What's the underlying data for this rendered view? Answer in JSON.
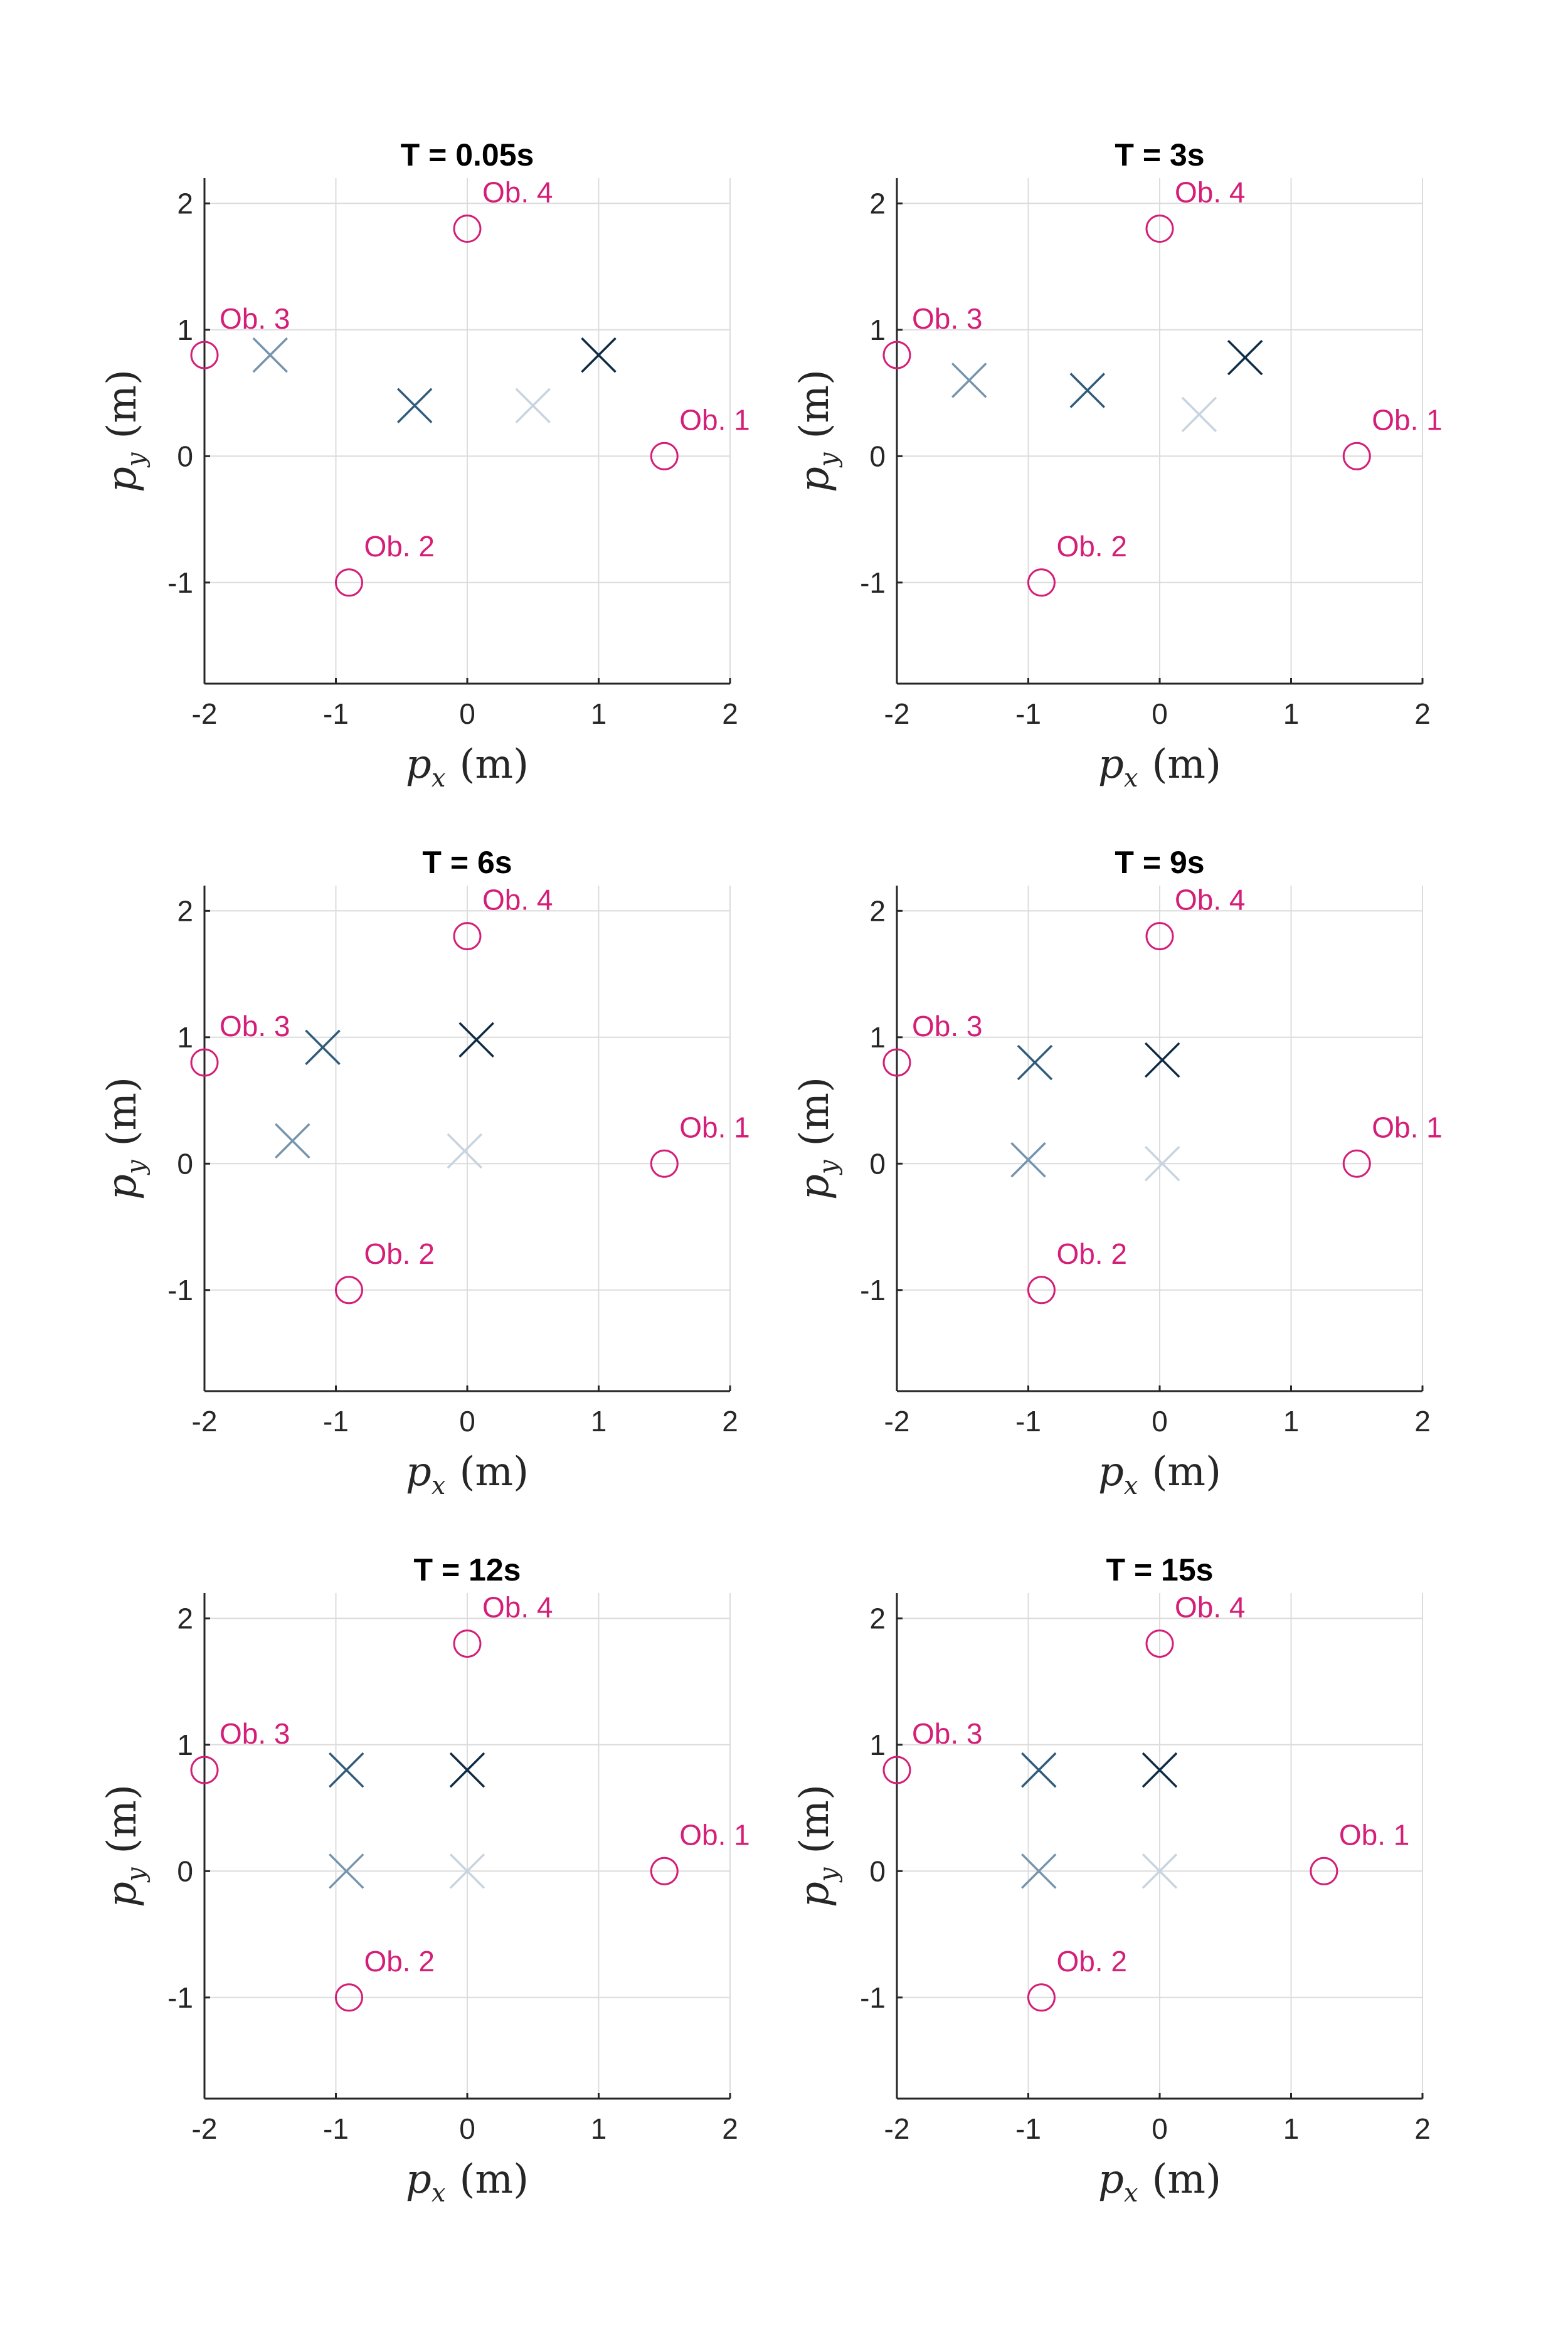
{
  "colors": {
    "obstacle": "#d41e77",
    "agents": [
      "#0d2b45",
      "#2f5b7c",
      "#7594ad",
      "#c7d4df"
    ],
    "grid": "#dcdcdc",
    "axis": "#262626"
  },
  "chart_data": [
    {
      "type": "scatter",
      "title": "T = 0.05s",
      "xlabel": {
        "var": "p",
        "sub": "x",
        "unit": "(m)"
      },
      "ylabel": {
        "var": "p",
        "sub": "y",
        "unit": "(m)"
      },
      "xlim": [
        -2,
        2
      ],
      "ylim": [
        -1.8,
        2.2
      ],
      "xticks": [
        "-2",
        "-1",
        "0",
        "1",
        "2"
      ],
      "yticks": [
        "-1",
        "0",
        "1",
        "2"
      ],
      "grid": true,
      "obstacles": [
        {
          "label": "Ob. 1",
          "x": 1.5,
          "y": 0
        },
        {
          "label": "Ob. 2",
          "x": -0.9,
          "y": -1
        },
        {
          "label": "Ob. 3",
          "x": -2,
          "y": 0.8
        },
        {
          "label": "Ob. 4",
          "x": 0,
          "y": 1.8
        }
      ],
      "agents": [
        {
          "x": 1.0,
          "y": 0.8
        },
        {
          "x": -0.4,
          "y": 0.4
        },
        {
          "x": -1.5,
          "y": 0.8
        },
        {
          "x": 0.5,
          "y": 0.4
        }
      ]
    },
    {
      "type": "scatter",
      "title": "T = 3s",
      "xlabel": {
        "var": "p",
        "sub": "x",
        "unit": "(m)"
      },
      "ylabel": {
        "var": "p",
        "sub": "y",
        "unit": "(m)"
      },
      "xlim": [
        -2,
        2
      ],
      "ylim": [
        -1.8,
        2.2
      ],
      "xticks": [
        "-2",
        "-1",
        "0",
        "1",
        "2"
      ],
      "yticks": [
        "-1",
        "0",
        "1",
        "2"
      ],
      "grid": true,
      "obstacles": [
        {
          "label": "Ob. 1",
          "x": 1.5,
          "y": 0
        },
        {
          "label": "Ob. 2",
          "x": -0.9,
          "y": -1
        },
        {
          "label": "Ob. 3",
          "x": -2,
          "y": 0.8
        },
        {
          "label": "Ob. 4",
          "x": 0,
          "y": 1.8
        }
      ],
      "agents": [
        {
          "x": 0.65,
          "y": 0.78
        },
        {
          "x": -0.55,
          "y": 0.52
        },
        {
          "x": -1.45,
          "y": 0.6
        },
        {
          "x": 0.3,
          "y": 0.33
        }
      ]
    },
    {
      "type": "scatter",
      "title": "T = 6s",
      "xlabel": {
        "var": "p",
        "sub": "x",
        "unit": "(m)"
      },
      "ylabel": {
        "var": "p",
        "sub": "y",
        "unit": "(m)"
      },
      "xlim": [
        -2,
        2
      ],
      "ylim": [
        -1.8,
        2.2
      ],
      "xticks": [
        "-2",
        "-1",
        "0",
        "1",
        "2"
      ],
      "yticks": [
        "-1",
        "0",
        "1",
        "2"
      ],
      "grid": true,
      "obstacles": [
        {
          "label": "Ob. 1",
          "x": 1.5,
          "y": 0
        },
        {
          "label": "Ob. 2",
          "x": -0.9,
          "y": -1
        },
        {
          "label": "Ob. 3",
          "x": -2,
          "y": 0.8
        },
        {
          "label": "Ob. 4",
          "x": 0,
          "y": 1.8
        }
      ],
      "agents": [
        {
          "x": 0.07,
          "y": 0.98
        },
        {
          "x": -1.1,
          "y": 0.92
        },
        {
          "x": -1.33,
          "y": 0.18
        },
        {
          "x": -0.02,
          "y": 0.1
        }
      ]
    },
    {
      "type": "scatter",
      "title": "T = 9s",
      "xlabel": {
        "var": "p",
        "sub": "x",
        "unit": "(m)"
      },
      "ylabel": {
        "var": "p",
        "sub": "y",
        "unit": "(m)"
      },
      "xlim": [
        -2,
        2
      ],
      "ylim": [
        -1.8,
        2.2
      ],
      "xticks": [
        "-2",
        "-1",
        "0",
        "1",
        "2"
      ],
      "yticks": [
        "-1",
        "0",
        "1",
        "2"
      ],
      "grid": true,
      "obstacles": [
        {
          "label": "Ob. 1",
          "x": 1.5,
          "y": 0
        },
        {
          "label": "Ob. 2",
          "x": -0.9,
          "y": -1
        },
        {
          "label": "Ob. 3",
          "x": -2,
          "y": 0.8
        },
        {
          "label": "Ob. 4",
          "x": 0,
          "y": 1.8
        }
      ],
      "agents": [
        {
          "x": 0.02,
          "y": 0.82
        },
        {
          "x": -0.95,
          "y": 0.8
        },
        {
          "x": -1.0,
          "y": 0.03
        },
        {
          "x": 0.02,
          "y": 0.0
        }
      ]
    },
    {
      "type": "scatter",
      "title": "T = 12s",
      "xlabel": {
        "var": "p",
        "sub": "x",
        "unit": "(m)"
      },
      "ylabel": {
        "var": "p",
        "sub": "y",
        "unit": "(m)"
      },
      "xlim": [
        -2,
        2
      ],
      "ylim": [
        -1.8,
        2.2
      ],
      "xticks": [
        "-2",
        "-1",
        "0",
        "1",
        "2"
      ],
      "yticks": [
        "-1",
        "0",
        "1",
        "2"
      ],
      "grid": true,
      "obstacles": [
        {
          "label": "Ob. 1",
          "x": 1.5,
          "y": 0
        },
        {
          "label": "Ob. 2",
          "x": -0.9,
          "y": -1
        },
        {
          "label": "Ob. 3",
          "x": -2,
          "y": 0.8
        },
        {
          "label": "Ob. 4",
          "x": 0,
          "y": 1.8
        }
      ],
      "agents": [
        {
          "x": 0.0,
          "y": 0.8
        },
        {
          "x": -0.92,
          "y": 0.8
        },
        {
          "x": -0.92,
          "y": 0.0
        },
        {
          "x": 0.0,
          "y": 0.0
        }
      ]
    },
    {
      "type": "scatter",
      "title": "T = 15s",
      "xlabel": {
        "var": "p",
        "sub": "x",
        "unit": "(m)"
      },
      "ylabel": {
        "var": "p",
        "sub": "y",
        "unit": "(m)"
      },
      "xlim": [
        -2,
        2
      ],
      "ylim": [
        -1.8,
        2.2
      ],
      "xticks": [
        "-2",
        "-1",
        "0",
        "1",
        "2"
      ],
      "yticks": [
        "-1",
        "0",
        "1",
        "2"
      ],
      "grid": true,
      "obstacles": [
        {
          "label": "Ob. 1",
          "x": 1.25,
          "y": 0
        },
        {
          "label": "Ob. 2",
          "x": -0.9,
          "y": -1
        },
        {
          "label": "Ob. 3",
          "x": -2,
          "y": 0.8
        },
        {
          "label": "Ob. 4",
          "x": 0,
          "y": 1.8
        }
      ],
      "agents": [
        {
          "x": 0.0,
          "y": 0.8
        },
        {
          "x": -0.92,
          "y": 0.8
        },
        {
          "x": -0.92,
          "y": 0.0
        },
        {
          "x": 0.0,
          "y": 0.0
        }
      ]
    }
  ]
}
